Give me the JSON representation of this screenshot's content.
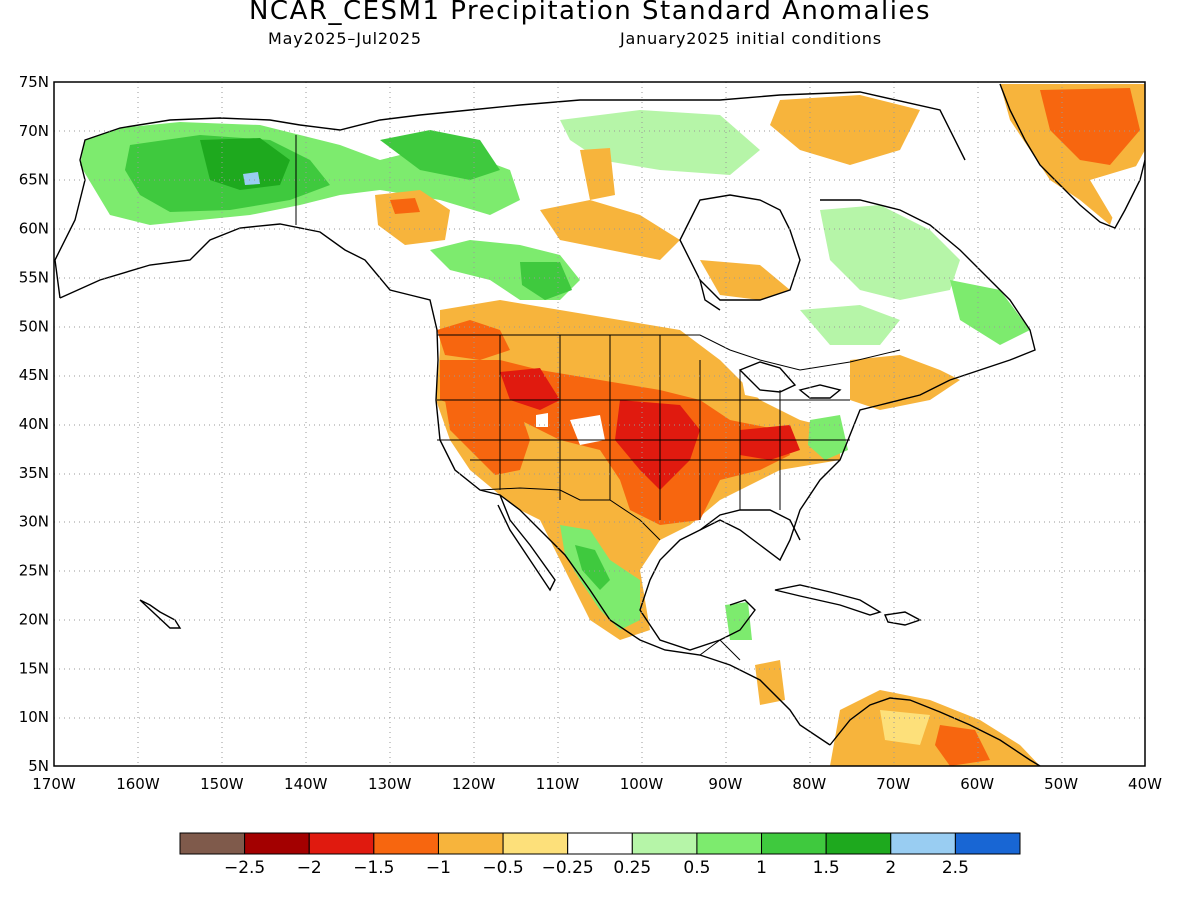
{
  "header": {
    "title": "NCAR_CESM1 Precipitation Standard Anomalies",
    "period": "May2025–Jul2025",
    "init": "January2025 initial conditions"
  },
  "map": {
    "lon_range": [
      -170,
      -40
    ],
    "lat_range": [
      5,
      75
    ],
    "lon_labels": [
      "170W",
      "160W",
      "150W",
      "140W",
      "130W",
      "120W",
      "110W",
      "100W",
      "90W",
      "80W",
      "70W",
      "60W",
      "50W",
      "40W"
    ],
    "lat_labels": [
      "75N",
      "70N",
      "65N",
      "60N",
      "55N",
      "50N",
      "45N",
      "40N",
      "35N",
      "30N",
      "25N",
      "20N",
      "15N",
      "10N",
      "5N"
    ],
    "grid": "dotted"
  },
  "colorbar": {
    "colors": [
      "#7f5a4b",
      "#a30000",
      "#e01a0f",
      "#f7660f",
      "#f7b43c",
      "#fde07a",
      "#ffffff",
      "#b6f5a8",
      "#7deb6e",
      "#3fc93e",
      "#1ea91e",
      "#99cdf2",
      "#1866d4"
    ],
    "labels": [
      "−2.5",
      "−2",
      "−1.5",
      "−1",
      "−0.5",
      "−0.25",
      "0.25",
      "0.5",
      "1",
      "1.5",
      "2",
      "2.5"
    ]
  },
  "anomaly_regions": [
    {
      "name": "alaska-interior",
      "level": "1"
    },
    {
      "name": "alaska-core",
      "level": "1.5"
    },
    {
      "name": "central-us",
      "level": "-1.5"
    },
    {
      "name": "southwest-us",
      "level": "-1"
    },
    {
      "name": "ohio-valley",
      "level": "-1"
    },
    {
      "name": "nw-mexico",
      "level": "1"
    },
    {
      "name": "greenland",
      "level": "-1"
    },
    {
      "name": "venezuela",
      "level": "-1"
    }
  ]
}
